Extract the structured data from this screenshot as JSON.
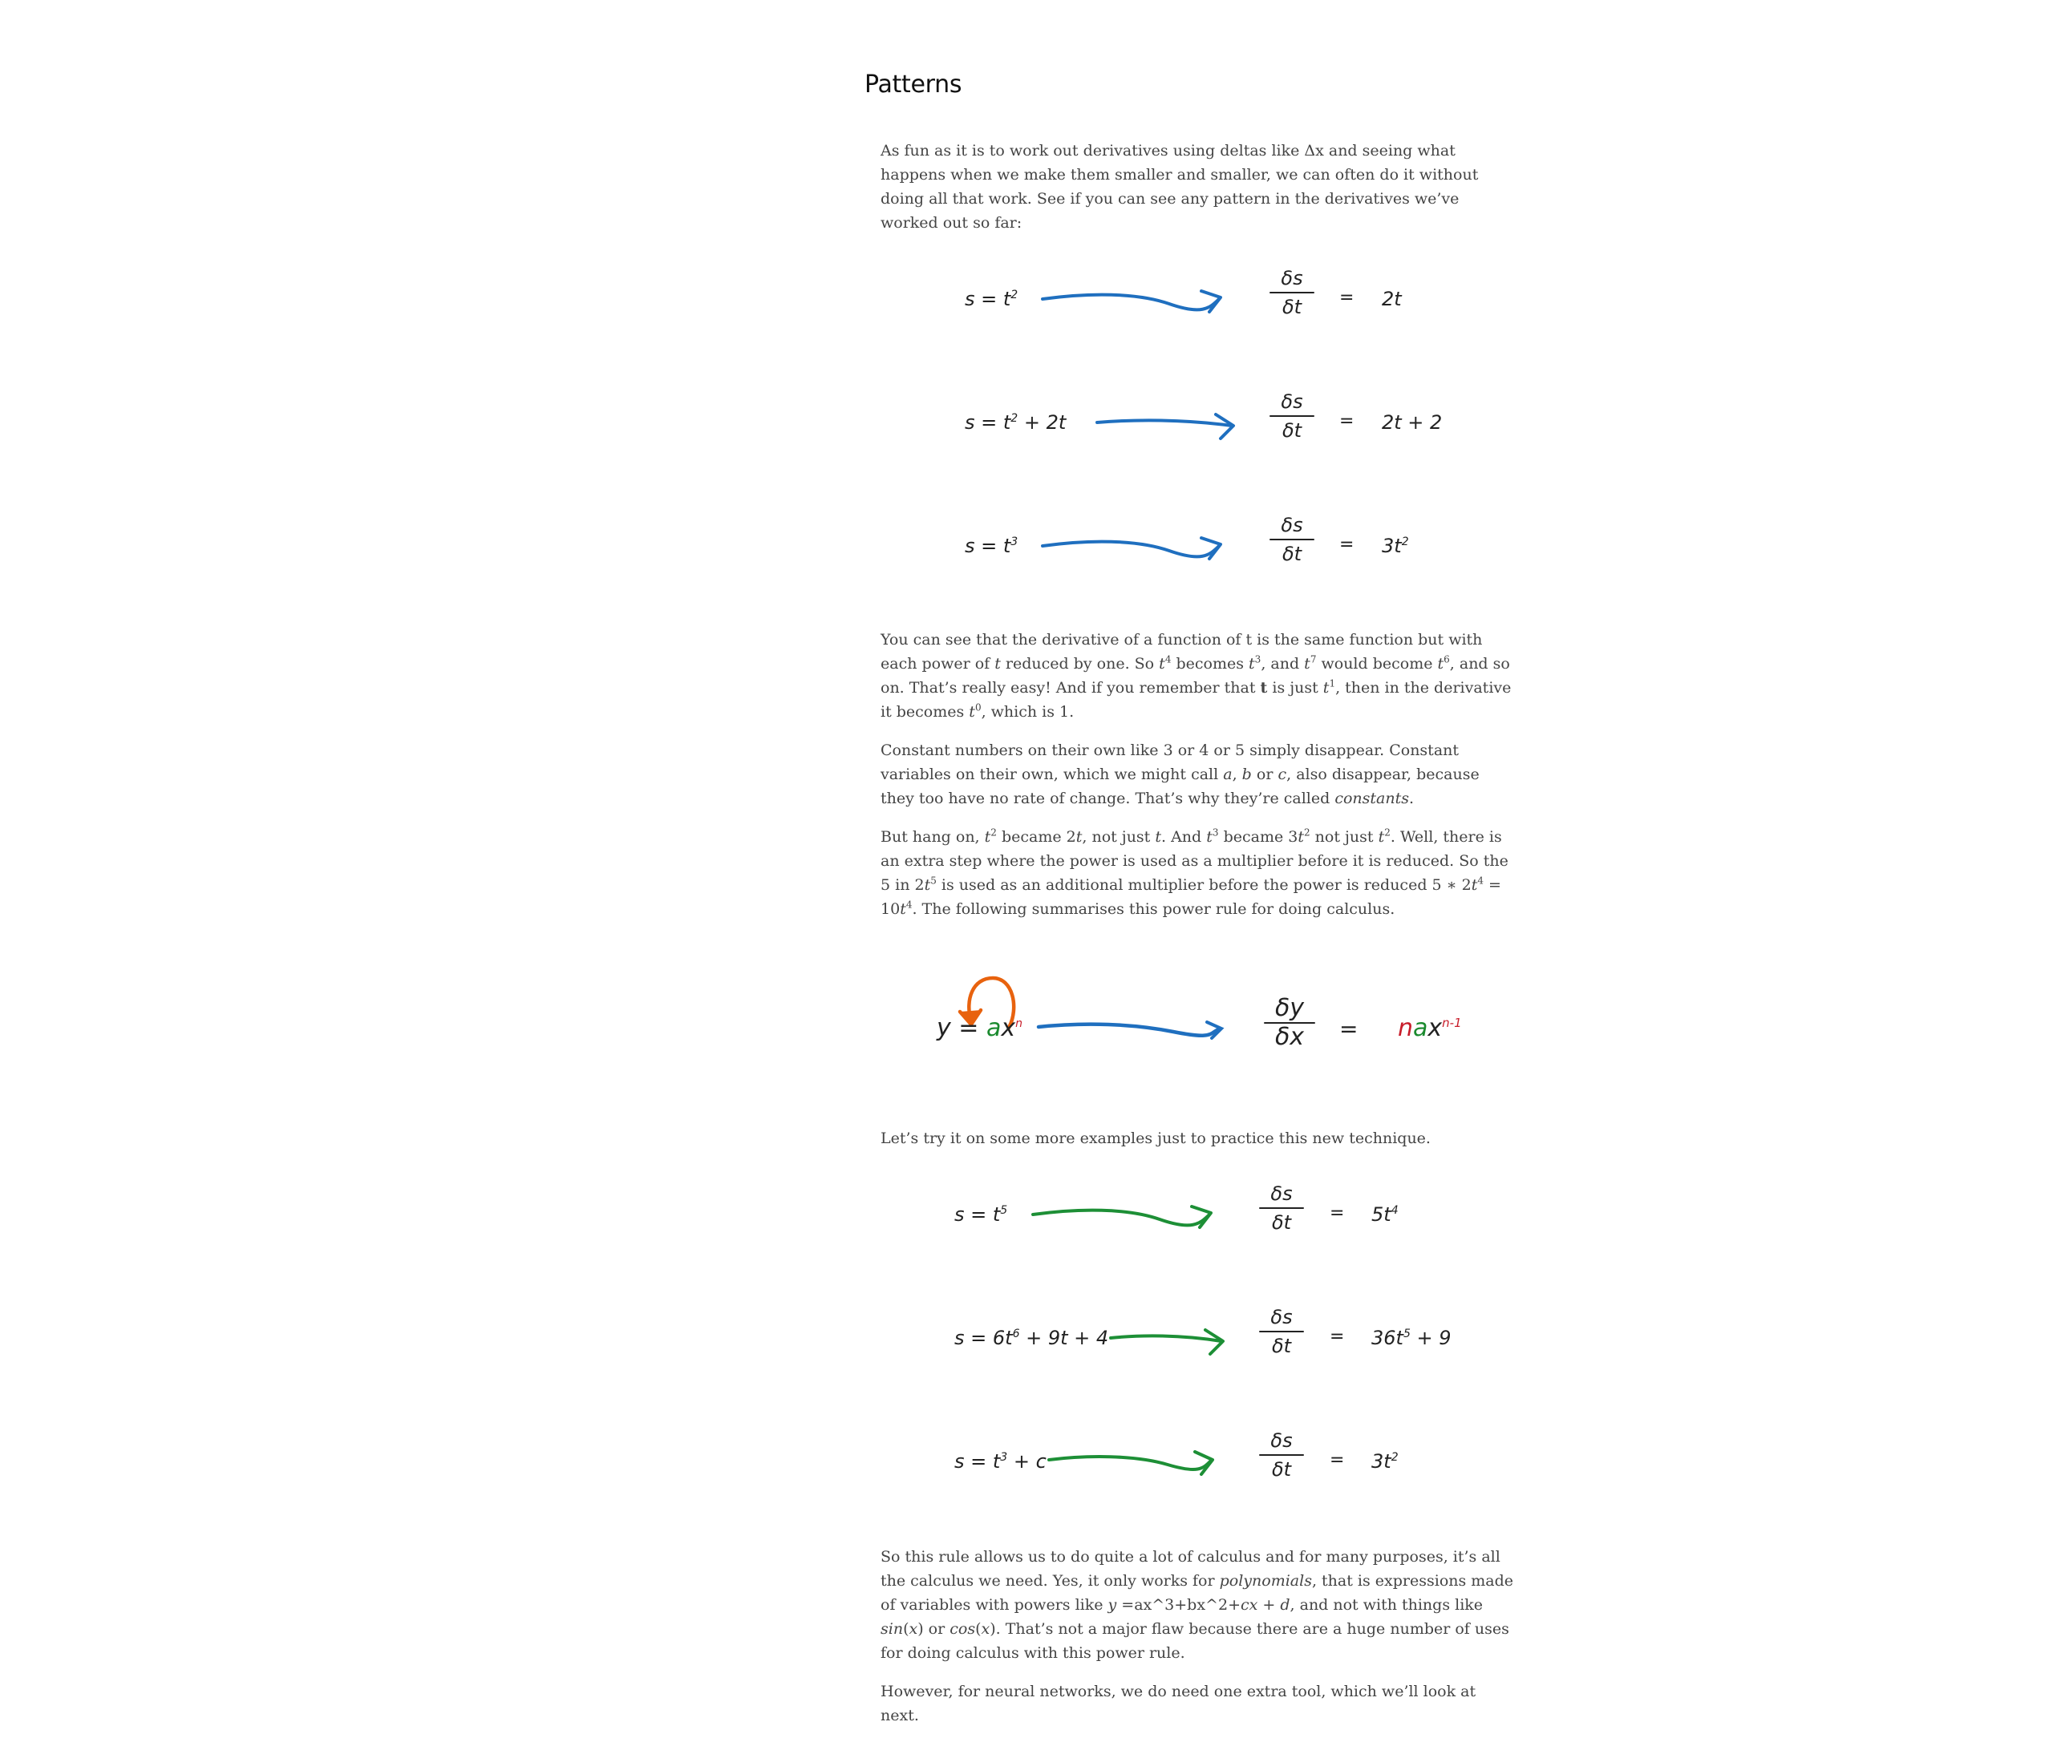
{
  "section": {
    "heading": "Patterns"
  },
  "paragraphs": {
    "intro": "As fun as it is to work out derivatives using deltas like Δx and seeing what happens when we make them smaller and smaller, we can often do it without doing all that work. See if you can see any pattern in the derivatives we’ve worked out so far:",
    "observation": {
      "a": "You can see that the derivative of a function of t is the same function but with each power of ",
      "b": "t",
      "c": " reduced by one. So ",
      "d": " becomes ",
      "e": ", and ",
      "f": " would become ",
      "g": ", and so on. That’s really easy! And if you remember that ",
      "h": "t",
      "i": " is just ",
      "j": ", then in the derivative it becomes ",
      "k": ", which is 1."
    },
    "constants": {
      "a": "Constant numbers on their own like 3 or 4 or 5 simply disappear. Constant variables on their own, which we might call ",
      "b": "a",
      "c": ", ",
      "d": "b",
      "e": " or ",
      "f": "c",
      "g": ", also disappear, because they too have no rate of change. That’s why they’re called ",
      "h": "constants",
      "i": "."
    },
    "hang_on": {
      "a": "But hang on, ",
      "b": " became 2",
      "c": ", not just ",
      "d": ". And ",
      "e": " became 3",
      "f": " not just ",
      "g": ". Well, there is an extra step where the power is used as a multiplier before it is reduced. So the 5 in 2",
      "h": " is used as an additional multiplier before the power is reduced 5 ∗ 2",
      "i": " = 10",
      "j": ". The following summarises this power rule for doing calculus."
    },
    "try_it": "Let’s try it on some more examples just to practice this new technique.",
    "summary": {
      "a": "So this rule allows us to do quite a lot of calculus and for many purposes, it’s all the calculus we need. Yes, it only works for ",
      "b": "polynomials",
      "c": ", that is expressions made of variables with powers like ",
      "d": "y",
      "e": " =ax^3+bx^2+",
      "f": "cx",
      "g": " + ",
      "h": "d",
      "i": ", and not with things like ",
      "j": "sin",
      "k": "(",
      "l": "x",
      "m": ") or ",
      "n": "cos",
      "o": "(",
      "p": "x",
      "q": "). That’s not a major flaw because there are a huge number of uses for doing calculus with this power rule."
    },
    "closing": "However, for neural networks, we do need one extra tool, which we’ll look at next."
  },
  "math": {
    "t": "t",
    "sup1": "1",
    "sup2": "2",
    "sup3": "3",
    "sup4": "4",
    "sup5": "5",
    "sup6": "6",
    "sup7": "7",
    "sup0": "0"
  },
  "worked_examples": [
    {
      "lhs": "s = t",
      "lhs_sup": "2",
      "lhs_tail": "",
      "num": "δs",
      "den": "δt",
      "eq": "=",
      "rhs": "2t",
      "rhs_sup": "",
      "rhs_tail": ""
    },
    {
      "lhs": "s = t",
      "lhs_sup": "2",
      "lhs_tail": " + 2t",
      "num": "δs",
      "den": "δt",
      "eq": "=",
      "rhs": "2t + 2",
      "rhs_sup": "",
      "rhs_tail": ""
    },
    {
      "lhs": "s = t",
      "lhs_sup": "3",
      "lhs_tail": "",
      "num": "δs",
      "den": "δt",
      "eq": "=",
      "rhs": "3t",
      "rhs_sup": "2",
      "rhs_tail": ""
    }
  ],
  "power_rule": {
    "lhs_y": "y =",
    "lhs_a": "a",
    "lhs_x": "x",
    "lhs_n": "n",
    "num": "δy",
    "den": "δx",
    "eq": "=",
    "rhs_n": "n",
    "rhs_a": "a",
    "rhs_x": "x",
    "rhs_exp": "n-1"
  },
  "practice_examples": [
    {
      "lhs": "s = t",
      "lhs_sup": "5",
      "lhs_tail": "",
      "num": "δs",
      "den": "δt",
      "eq": "=",
      "rhs": "5t",
      "rhs_sup": "4",
      "rhs_tail": ""
    },
    {
      "lhs": "s = 6t",
      "lhs_sup": "6",
      "lhs_tail": " + 9t + 4",
      "num": "δs",
      "den": "δt",
      "eq": "=",
      "rhs": "36t",
      "rhs_sup": "5",
      "rhs_tail": " + 9"
    },
    {
      "lhs": "s = t",
      "lhs_sup": "3",
      "lhs_tail": " + c",
      "num": "δs",
      "den": "δt",
      "eq": "=",
      "rhs": "3t",
      "rhs_sup": "2",
      "rhs_tail": ""
    }
  ],
  "colors": {
    "blue_arrow": "#1f6fbf",
    "green_arrow": "#1d8f36",
    "orange_loop": "#e8620e",
    "red_accent": "#c81e2b",
    "green_accent": "#1a8a2e"
  }
}
